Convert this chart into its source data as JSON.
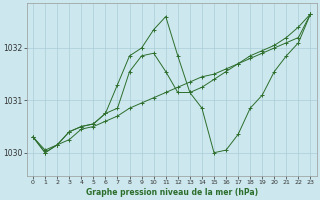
{
  "title": "Graphe pression niveau de la mer (hPa)",
  "bg_color": "#cce8ee",
  "grid_color": "#aacdd6",
  "line_color": "#2d6e2d",
  "xlim": [
    -0.5,
    23.5
  ],
  "ylim": [
    1029.55,
    1032.85
  ],
  "yticks": [
    1030,
    1031,
    1032
  ],
  "xticks": [
    0,
    1,
    2,
    3,
    4,
    5,
    6,
    7,
    8,
    9,
    10,
    11,
    12,
    13,
    14,
    15,
    16,
    17,
    18,
    19,
    20,
    21,
    22,
    23
  ],
  "series": [
    {
      "x": [
        0,
        1,
        2,
        3,
        4,
        5,
        6,
        7,
        8,
        9,
        10,
        11,
        12,
        13,
        14,
        15,
        16,
        17,
        18,
        19,
        20,
        21,
        22,
        23
      ],
      "y": [
        1030.3,
        1030.05,
        1030.15,
        1030.25,
        1030.45,
        1030.5,
        1030.6,
        1030.7,
        1030.85,
        1030.95,
        1031.05,
        1031.15,
        1031.25,
        1031.35,
        1031.45,
        1031.5,
        1031.6,
        1031.7,
        1031.8,
        1031.9,
        1032.0,
        1032.1,
        1032.2,
        1032.65
      ]
    },
    {
      "x": [
        0,
        1,
        2,
        3,
        4,
        5,
        6,
        7,
        8,
        9,
        10,
        11,
        12,
        13,
        14,
        15,
        16,
        17,
        18,
        19,
        20,
        21,
        22,
        23
      ],
      "y": [
        1030.3,
        1030.0,
        1030.15,
        1030.4,
        1030.5,
        1030.55,
        1030.75,
        1031.3,
        1031.85,
        1032.0,
        1032.35,
        1032.6,
        1031.85,
        1031.15,
        1030.85,
        1030.0,
        1030.05,
        1030.35,
        1030.85,
        1031.1,
        1031.55,
        1031.85,
        1032.1,
        1032.65
      ]
    },
    {
      "x": [
        0,
        1,
        2,
        3,
        4,
        5,
        6,
        7,
        8,
        9,
        10,
        11,
        12,
        13,
        14,
        15,
        16,
        17,
        18,
        19,
        20,
        21,
        22,
        23
      ],
      "y": [
        1030.3,
        1030.0,
        1030.15,
        1030.4,
        1030.5,
        1030.55,
        1030.75,
        1030.85,
        1031.55,
        1031.85,
        1031.9,
        1031.55,
        1031.15,
        1031.15,
        1031.25,
        1031.4,
        1031.55,
        1031.7,
        1031.85,
        1031.95,
        1032.05,
        1032.2,
        1032.4,
        1032.65
      ]
    }
  ]
}
